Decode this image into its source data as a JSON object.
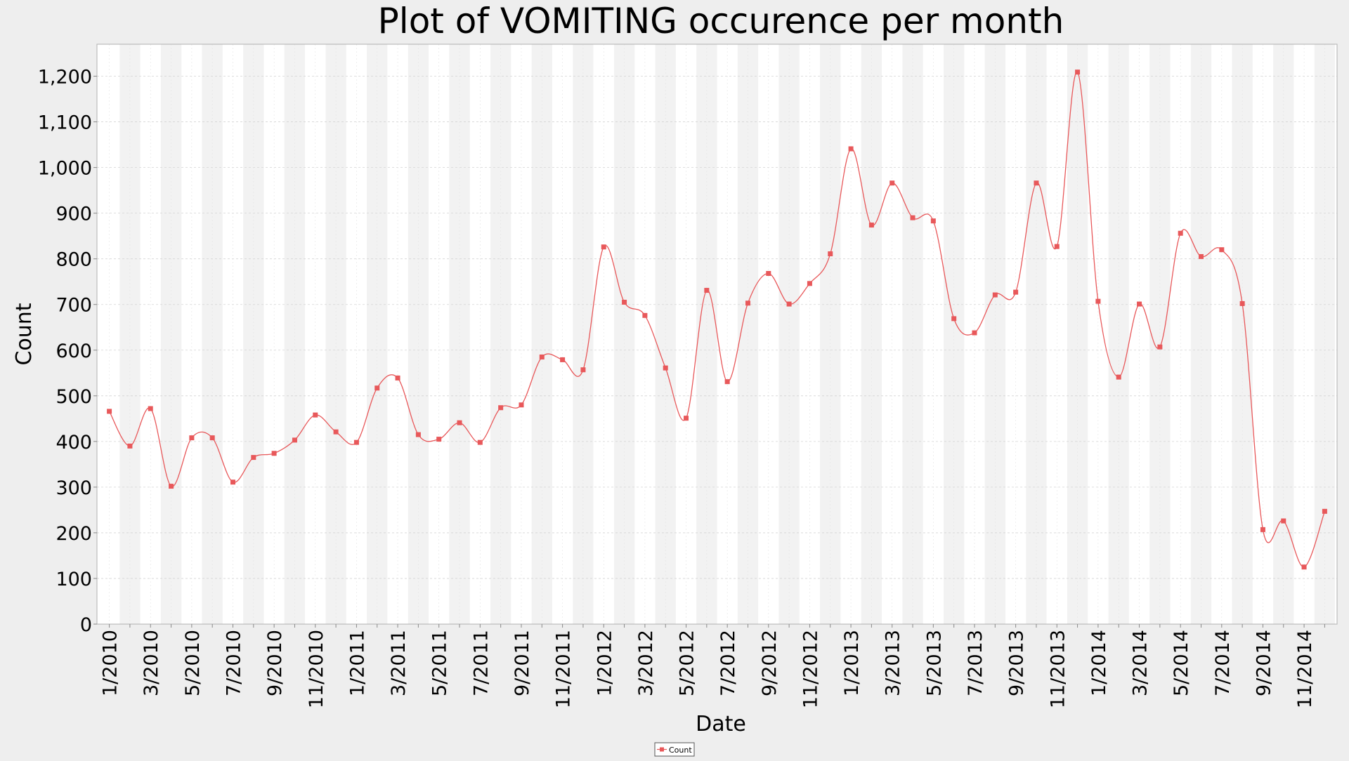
{
  "chart_data": {
    "type": "line",
    "title": "Plot of VOMITING occurence per month",
    "xlabel": "Date",
    "ylabel": "Count",
    "ylim": [
      0,
      1270
    ],
    "yticks": [
      0,
      100,
      200,
      300,
      400,
      500,
      600,
      700,
      800,
      900,
      1000,
      1100,
      1200
    ],
    "ytick_labels": [
      "0",
      "100",
      "200",
      "300",
      "400",
      "500",
      "600",
      "700",
      "800",
      "900",
      "1,000",
      "1,100",
      "1,200"
    ],
    "xtick_labels": [
      "1/2010",
      "3/2010",
      "5/2010",
      "7/2010",
      "9/2010",
      "11/2010",
      "1/2011",
      "3/2011",
      "5/2011",
      "7/2011",
      "9/2011",
      "11/2011",
      "1/2012",
      "3/2012",
      "5/2012",
      "7/2012",
      "9/2012",
      "11/2012",
      "1/2013",
      "3/2013",
      "5/2013",
      "7/2013",
      "9/2013",
      "11/2013",
      "1/2014",
      "3/2014",
      "5/2014",
      "7/2014",
      "9/2014",
      "11/2014"
    ],
    "x": [
      "1/2010",
      "2/2010",
      "3/2010",
      "4/2010",
      "5/2010",
      "6/2010",
      "7/2010",
      "8/2010",
      "9/2010",
      "10/2010",
      "11/2010",
      "12/2010",
      "1/2011",
      "2/2011",
      "3/2011",
      "4/2011",
      "5/2011",
      "6/2011",
      "7/2011",
      "8/2011",
      "9/2011",
      "10/2011",
      "11/2011",
      "12/2011",
      "1/2012",
      "2/2012",
      "3/2012",
      "4/2012",
      "5/2012",
      "6/2012",
      "7/2012",
      "8/2012",
      "9/2012",
      "10/2012",
      "11/2012",
      "12/2012",
      "1/2013",
      "2/2013",
      "3/2013",
      "4/2013",
      "5/2013",
      "6/2013",
      "7/2013",
      "8/2013",
      "9/2013",
      "10/2013",
      "11/2013",
      "12/2013",
      "1/2014",
      "2/2014",
      "3/2014",
      "4/2014",
      "5/2014",
      "6/2014",
      "7/2014",
      "8/2014",
      "9/2014",
      "10/2014",
      "11/2014",
      "12/2014"
    ],
    "series": [
      {
        "name": "Count",
        "color": "#e8585a",
        "values": [
          466,
          390,
          472,
          302,
          408,
          408,
          311,
          365,
          374,
          403,
          458,
          421,
          398,
          517,
          539,
          415,
          405,
          441,
          398,
          474,
          480,
          585,
          579,
          557,
          826,
          705,
          676,
          561,
          451,
          731,
          531,
          703,
          768,
          701,
          746,
          811,
          1041,
          874,
          966,
          890,
          883,
          669,
          638,
          721,
          727,
          966,
          827,
          1209,
          707,
          541,
          701,
          607,
          856,
          805,
          820,
          702,
          207,
          226,
          125,
          247
        ]
      }
    ],
    "grid": true,
    "legend_placement": "bottom-center",
    "legend": [
      "Count"
    ]
  }
}
